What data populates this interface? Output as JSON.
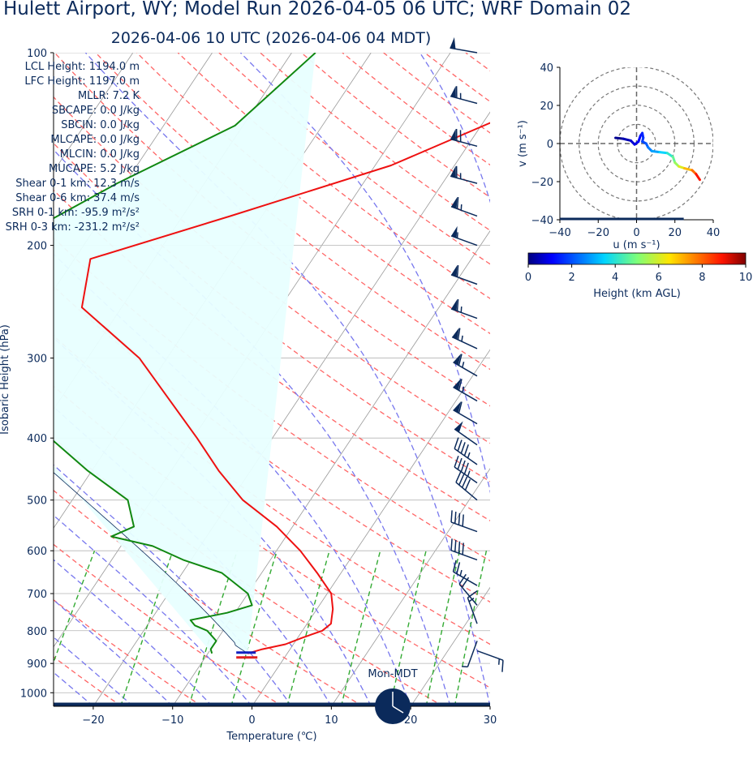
{
  "title": "Hulett Airport, WY; Model Run 2026-04-05 06 UTC; WRF Domain 02",
  "subtitle": "2026-04-06 10 UTC  (2026-04-06 04 MDT)",
  "colors": {
    "temperature": "#ee1111",
    "dewpoint": "#118811",
    "dry_adiabats": "#ff6666",
    "moist_adiabats": "#7777ee",
    "mixing_ratio": "#33aa33",
    "isotherms": "#aaaaaa",
    "parcel_shading": "#e8ffff",
    "navy": "#0b2a5b"
  },
  "indices": [
    {
      "label": "LCL Height:",
      "value": "1194.0 m"
    },
    {
      "label": "LFC Height:",
      "value": "1197.0 m"
    },
    {
      "label": "MLLR:",
      "value": "7.2 K"
    },
    {
      "label": "SBCAPE:",
      "value": "0.0 J/kg"
    },
    {
      "label": "SBCIN:",
      "value": "0.0 J/kg"
    },
    {
      "label": "MLCAPE:",
      "value": "0.0 J/kg"
    },
    {
      "label": "MLCIN:",
      "value": "0.0 J/kg"
    },
    {
      "label": "MUCAPE:",
      "value": "5.2 J/kg"
    },
    {
      "label": "Shear 0-1 km:",
      "value": "12.3 m/s"
    },
    {
      "label": "Shear 0-6 km:",
      "value": "37.4 m/s"
    },
    {
      "label": "SRH 0-1 km:",
      "value": "-95.9 m²/s²"
    },
    {
      "label": "SRH 0-3 km:",
      "value": "-231.2 m²/s²"
    }
  ],
  "clock_label": "Mon-MDT",
  "hodograph": {
    "xlabel": "u (m s⁻¹)",
    "ylabel": "v (m s⁻¹)",
    "ticks": [
      "−40",
      "−20",
      "0",
      "20",
      "40"
    ]
  },
  "colorbar": {
    "label": "Height (km AGL)",
    "ticks": [
      "0",
      "2",
      "4",
      "6",
      "8",
      "10"
    ]
  },
  "chart_data": [
    {
      "type": "line",
      "subtype": "skew-T log-p",
      "xlabel": "Temperature (℃)",
      "ylabel": "Isobaric Height (hPa)",
      "xlim": [
        -25,
        30
      ],
      "ylim": [
        1050,
        100
      ],
      "x_ticks": [
        "−20",
        "−10",
        "0",
        "10",
        "20",
        "30"
      ],
      "y_ticks": [
        "100",
        "200",
        "300",
        "400",
        "500",
        "600",
        "700",
        "800",
        "900",
        "1000"
      ],
      "series": [
        {
          "key": "temperature",
          "points": [
            [
              100,
              -4.5
            ],
            [
              120,
              -15
            ],
            [
              150,
              -28
            ],
            [
              180,
              -44
            ],
            [
              210,
              -58
            ],
            [
              250,
              -55
            ],
            [
              300,
              -43.5
            ],
            [
              350,
              -36
            ],
            [
              400,
              -29.5
            ],
            [
              450,
              -24
            ],
            [
              500,
              -18.5
            ],
            [
              550,
              -12
            ],
            [
              600,
              -7
            ],
            [
              650,
              -3
            ],
            [
              700,
              0.5
            ],
            [
              740,
              2.0
            ],
            [
              760,
              2.5
            ],
            [
              780,
              3.0
            ],
            [
              800,
              2.5
            ],
            [
              820,
              0.6
            ],
            [
              840,
              -1
            ],
            [
              855,
              -3.5
            ],
            [
              868,
              -5.0
            ]
          ]
        },
        {
          "key": "dewpoint",
          "points": [
            [
              100,
              -47
            ],
            [
              130,
              -51
            ],
            [
              160,
              -61
            ],
            [
              200,
              -70
            ],
            [
              210,
              -72
            ],
            [
              250,
              -73
            ],
            [
              300,
              -66
            ],
            [
              350,
              -57
            ],
            [
              400,
              -48
            ],
            [
              450,
              -40.5
            ],
            [
              500,
              -33
            ],
            [
              550,
              -30
            ],
            [
              570,
              -32
            ],
            [
              590,
              -26
            ],
            [
              620,
              -21
            ],
            [
              650,
              -15
            ],
            [
              700,
              -10
            ],
            [
              730,
              -8.5
            ],
            [
              750,
              -11
            ],
            [
              770,
              -15
            ],
            [
              785,
              -14
            ],
            [
              800,
              -12
            ],
            [
              830,
              -10
            ],
            [
              855,
              -10
            ],
            [
              868,
              -9.5
            ]
          ]
        }
      ],
      "wind_barbs": [
        {
          "p": 100,
          "speed": 50,
          "dir": 280
        },
        {
          "p": 120,
          "speed": 65,
          "dir": 285
        },
        {
          "p": 140,
          "speed": 70,
          "dir": 285
        },
        {
          "p": 160,
          "speed": 65,
          "dir": 285
        },
        {
          "p": 180,
          "speed": 65,
          "dir": 290
        },
        {
          "p": 200,
          "speed": 55,
          "dir": 290
        },
        {
          "p": 230,
          "speed": 60,
          "dir": 290
        },
        {
          "p": 260,
          "speed": 65,
          "dir": 290
        },
        {
          "p": 290,
          "speed": 65,
          "dir": 295
        },
        {
          "p": 320,
          "speed": 65,
          "dir": 300
        },
        {
          "p": 350,
          "speed": 65,
          "dir": 300
        },
        {
          "p": 380,
          "speed": 60,
          "dir": 300
        },
        {
          "p": 410,
          "speed": 50,
          "dir": 305
        },
        {
          "p": 440,
          "speed": 45,
          "dir": 305
        },
        {
          "p": 470,
          "speed": 45,
          "dir": 305
        },
        {
          "p": 500,
          "speed": 40,
          "dir": 310
        },
        {
          "p": 560,
          "speed": 40,
          "dir": 290
        },
        {
          "p": 620,
          "speed": 40,
          "dir": 290
        },
        {
          "p": 680,
          "speed": 25,
          "dir": 300
        },
        {
          "p": 730,
          "speed": 20,
          "dir": 320
        },
        {
          "p": 780,
          "speed": 15,
          "dir": 340
        },
        {
          "p": 830,
          "speed": 5,
          "dir": 200
        },
        {
          "p": 860,
          "speed": 15,
          "dir": 110
        }
      ]
    },
    {
      "type": "line",
      "subtype": "hodograph",
      "xlabel": "u (m s⁻¹)",
      "ylabel": "v (m s⁻¹)",
      "xlim": [
        -40,
        40
      ],
      "ylim": [
        -40,
        40
      ],
      "range_rings": [
        10,
        20,
        30,
        40
      ],
      "colorbar_range_km": [
        0,
        10
      ],
      "points": [
        {
          "u": -11,
          "v": 3,
          "h": 0
        },
        {
          "u": -7,
          "v": 2.5,
          "h": 0.3
        },
        {
          "u": -3,
          "v": 1.5,
          "h": 0.6
        },
        {
          "u": -1,
          "v": -0.5,
          "h": 0.8
        },
        {
          "u": 1,
          "v": 1,
          "h": 1.0
        },
        {
          "u": 2,
          "v": 4,
          "h": 1.2
        },
        {
          "u": 3,
          "v": 5.5,
          "h": 1.4
        },
        {
          "u": 3.5,
          "v": 3,
          "h": 1.6
        },
        {
          "u": 3,
          "v": 1,
          "h": 1.8
        },
        {
          "u": 5,
          "v": 0,
          "h": 2.0
        },
        {
          "u": 6,
          "v": -2,
          "h": 2.3
        },
        {
          "u": 8,
          "v": -4,
          "h": 2.7
        },
        {
          "u": 12,
          "v": -4.5,
          "h": 3.2
        },
        {
          "u": 16,
          "v": -5,
          "h": 3.8
        },
        {
          "u": 19,
          "v": -7,
          "h": 4.4
        },
        {
          "u": 20,
          "v": -10,
          "h": 5.0
        },
        {
          "u": 22,
          "v": -12,
          "h": 5.7
        },
        {
          "u": 25,
          "v": -13,
          "h": 6.5
        },
        {
          "u": 29,
          "v": -14,
          "h": 7.5
        },
        {
          "u": 31,
          "v": -16,
          "h": 8.3
        },
        {
          "u": 33,
          "v": -19,
          "h": 9.5
        }
      ]
    }
  ]
}
